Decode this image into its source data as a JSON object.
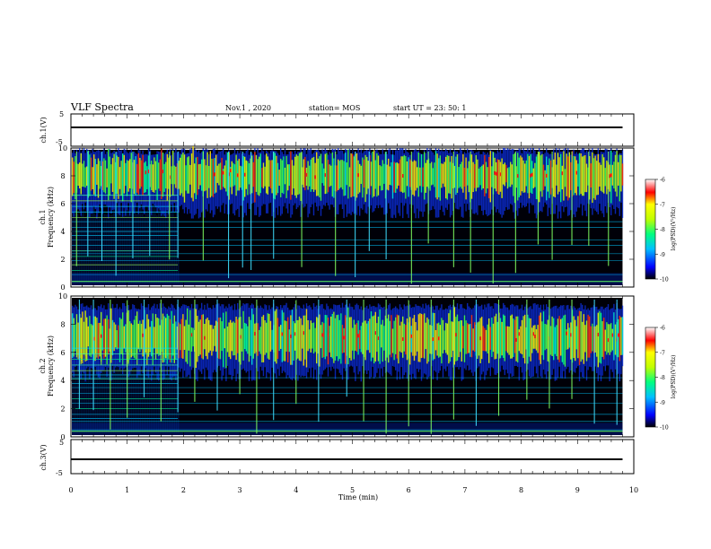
{
  "header": {
    "title": "VLF Spectra",
    "date": "Nov.1  , 2020",
    "station": "station= MOS",
    "start": "start  UT  =   23: 50: 1"
  },
  "chart_data": [
    {
      "type": "line",
      "panel": "ch1-waveform",
      "ylabel": "ch.1(V)",
      "ylim": [
        -5,
        5
      ],
      "yticks": [
        "5",
        "-5"
      ],
      "series": [
        {
          "x": [
            0,
            9.8
          ],
          "values": [
            0,
            0
          ]
        }
      ]
    },
    {
      "type": "heatmap",
      "panel": "ch1-spectrogram",
      "ylabel_top": "ch.1",
      "ylabel": "Frequency  (kHz)",
      "xlim": [
        0,
        10
      ],
      "ylim": [
        0,
        10
      ],
      "yticks": [
        "0",
        "2",
        "4",
        "6",
        "8",
        "10"
      ],
      "zlim": [
        -10,
        -6
      ],
      "colorbar_ticks": [
        "-6",
        "-7",
        "-8",
        "-9",
        "-10"
      ],
      "colorbar_label": "log(PSD)(V²/Hz)",
      "regime_change_min": 1.9,
      "emission_band_khz": [
        5.5,
        9.5
      ],
      "emission_peak_khz": 8.0,
      "tone_lines_khz": [
        0.4,
        0.9,
        1.9,
        2.4,
        3.0,
        3.4,
        4.3,
        4.7
      ],
      "early_tone_lines_khz": [
        1.2,
        1.6,
        2.2,
        2.6,
        3.7,
        4.0,
        5.0,
        5.4,
        5.8,
        6.2,
        6.6
      ],
      "spike_times_min": [
        0.1,
        0.3,
        0.55,
        0.8,
        1.1,
        1.4,
        1.75,
        1.9,
        2.35,
        2.8,
        3.05,
        3.2,
        3.6,
        4.1,
        4.7,
        5.05,
        5.3,
        5.6,
        6.05,
        6.35,
        6.8,
        7.1,
        7.5,
        7.9,
        8.3,
        8.55,
        8.9,
        9.2,
        9.55
      ]
    },
    {
      "type": "heatmap",
      "panel": "ch2-spectrogram",
      "ylabel_top": "ch.2",
      "ylabel": "Frequency  (kHz)",
      "xlim": [
        0,
        10
      ],
      "ylim": [
        0,
        10
      ],
      "yticks": [
        "0",
        "2",
        "4",
        "6",
        "8",
        "10"
      ],
      "zlim": [
        -10,
        -6
      ],
      "colorbar_ticks": [
        "-6",
        "-7",
        "-8",
        "-9",
        "-10"
      ],
      "colorbar_label": "log(PSD)(V²/Hz)",
      "regime_change_min": 1.9,
      "emission_band_khz": [
        4.5,
        9.0
      ],
      "emission_peak_khz": 7.0,
      "tone_lines_khz": [
        0.5,
        1.1,
        1.6,
        2.4,
        3.1,
        3.5,
        4.2
      ],
      "early_tone_lines_khz": [
        1.3,
        2.0,
        2.7,
        3.8,
        4.1,
        4.4,
        4.7,
        5.1,
        5.5,
        5.9,
        6.3
      ],
      "spike_times_min": [
        0.15,
        0.4,
        0.7,
        1.0,
        1.3,
        1.6,
        1.9,
        2.2,
        2.6,
        3.0,
        3.3,
        3.6,
        4.0,
        4.4,
        4.9,
        5.2,
        5.6,
        6.0,
        6.4,
        6.8,
        7.2,
        7.6,
        8.1,
        8.5,
        8.9,
        9.3,
        9.7
      ]
    },
    {
      "type": "line",
      "panel": "ch3-waveform",
      "ylabel": "ch.3(V)",
      "ylim": [
        -5,
        5
      ],
      "yticks": [
        "5",
        "-5"
      ],
      "series": [
        {
          "x": [
            0,
            9.8
          ],
          "values": [
            0,
            0
          ]
        }
      ]
    }
  ],
  "xaxis": {
    "label": "Time  (min)",
    "ticks": [
      "0",
      "1",
      "2",
      "3",
      "4",
      "5",
      "6",
      "7",
      "8",
      "9",
      "10"
    ],
    "range": [
      0,
      10
    ],
    "data_end_min": 9.8
  }
}
